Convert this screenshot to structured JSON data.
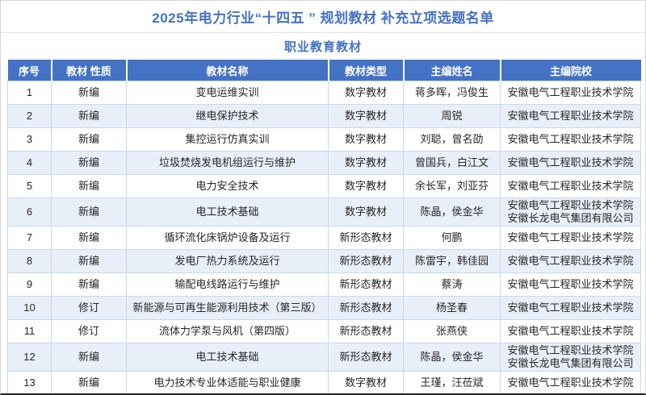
{
  "page": {
    "title": "2025年电力行业“十四五 ” 规划教材 补充立项选题名单",
    "subtitle": "职业教育教材"
  },
  "colors": {
    "header_bg": "#4472C4",
    "header_text": "#FFFFFF",
    "title_text": "#4472C4",
    "stripe_bg": "#E9EFF9",
    "grid_line": "#C9D7EE",
    "body_text": "#262626"
  },
  "table": {
    "headers": [
      "序号",
      "教材 性质",
      "教材名称",
      "教材类型",
      "主编姓名",
      "主编院校"
    ],
    "rows": [
      {
        "no": "1",
        "nature": "新编",
        "name": "变电运维实训",
        "type": "数字教材",
        "editor": "蒋多晖，冯俊生",
        "school": "安徽电气工程职业技术学院"
      },
      {
        "no": "2",
        "nature": "新编",
        "name": "继电保护技术",
        "type": "数字教材",
        "editor": "周锐",
        "school": "安徽电气工程职业技术学院"
      },
      {
        "no": "3",
        "nature": "新编",
        "name": "集控运行仿真实训",
        "type": "数字教材",
        "editor": "刘聪，曾名劭",
        "school": "安徽电气工程职业技术学院"
      },
      {
        "no": "4",
        "nature": "新编",
        "name": "垃圾焚烧发电机组运行与维护",
        "type": "数字教材",
        "editor": "曾国兵，白江文",
        "school": "安徽电气工程职业技术学院"
      },
      {
        "no": "5",
        "nature": "新编",
        "name": "电力安全技术",
        "type": "数字教材",
        "editor": "余长军，刘亚芬",
        "school": "安徽电气工程职业技术学院"
      },
      {
        "no": "6",
        "nature": "新编",
        "name": "电工技术基础",
        "type": "数字教材",
        "editor": "陈晶，侯金华",
        "school": "安徽电气工程职业技术学院\n安徽长龙电气集团有限公司"
      },
      {
        "no": "7",
        "nature": "新编",
        "name": "循环流化床锅炉设备及运行",
        "type": "新形态教材",
        "editor": "何鹏",
        "school": "安徽电气工程职业技术学院"
      },
      {
        "no": "8",
        "nature": "新编",
        "name": "发电厂热力系统及运行",
        "type": "新形态教材",
        "editor": "陈雷宇，韩佳园",
        "school": "安徽电气工程职业技术学院"
      },
      {
        "no": "9",
        "nature": "新编",
        "name": "输配电线路运行与维护",
        "type": "新形态教材",
        "editor": "蔡涛",
        "school": "安徽电气工程职业技术学院"
      },
      {
        "no": "10",
        "nature": "修订",
        "name": "新能源与可再生能源利用技术（第三版）",
        "type": "新形态教材",
        "editor": "杨圣春",
        "school": "安徽电气工程职业技术学院"
      },
      {
        "no": "11",
        "nature": "修订",
        "name": "流体力学泵与风机（第四版）",
        "type": "新形态教材",
        "editor": "张燕侠",
        "school": "安徽电气工程职业技术学院"
      },
      {
        "no": "12",
        "nature": "新编",
        "name": "电工技术基础",
        "type": "新形态教材",
        "editor": "陈晶，侯金华",
        "school": "安徽电气工程职业技术学院\n安徽长龙电气集团有限公司"
      },
      {
        "no": "13",
        "nature": "新编",
        "name": "电力技术专业体适能与职业健康",
        "type": "数字教材",
        "editor": "王瑾，汪莅斌",
        "school": "安徽电气工程职业技术学院"
      }
    ]
  }
}
